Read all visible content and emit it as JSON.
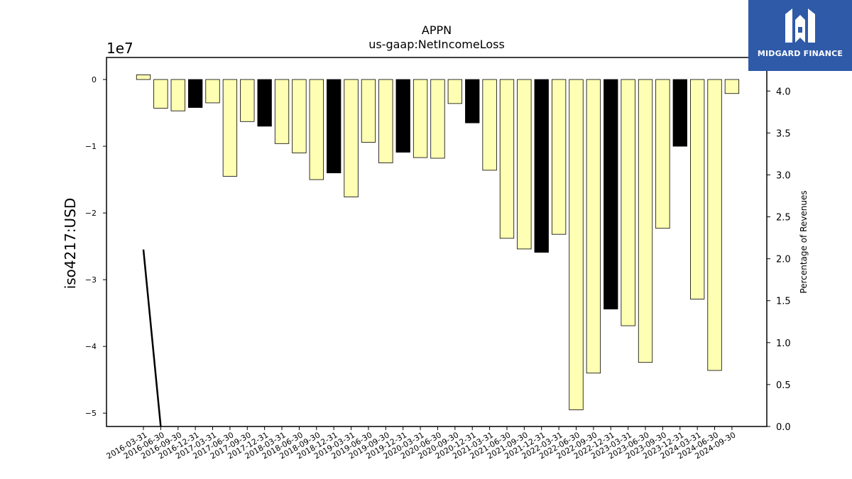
{
  "chart_data": {
    "type": "bar",
    "title": "APPN",
    "subtitle": "us-gaap:NetIncomeLoss",
    "ylabel": "iso4217:USD",
    "y_offset_label": "1e7",
    "y2label": "Percentage of Revenues",
    "ylim": [
      -52000000,
      3300000
    ],
    "y2lim": [
      0.0,
      4.4
    ],
    "yticks": [
      0,
      -10000000,
      -20000000,
      -30000000,
      -40000000,
      -50000000
    ],
    "yticklabels": [
      "0",
      "−1",
      "−2",
      "−3",
      "−4",
      "−5"
    ],
    "y2ticks": [
      0.0,
      0.5,
      1.0,
      1.5,
      2.0,
      2.5,
      3.0,
      3.5,
      4.0
    ],
    "y2ticklabels": [
      "0.0",
      "0.5",
      "1.0",
      "1.5",
      "2.0",
      "2.5",
      "3.0",
      "3.5",
      "4.0"
    ],
    "grid": false,
    "categories": [
      "2016-03-31",
      "2016-06-30",
      "2016-09-30",
      "2016-12-31",
      "2017-03-31",
      "2017-06-30",
      "2017-09-30",
      "2017-12-31",
      "2018-03-31",
      "2018-06-30",
      "2018-09-30",
      "2018-12-31",
      "2019-03-31",
      "2019-06-30",
      "2019-09-30",
      "2019-12-31",
      "2020-03-31",
      "2020-06-30",
      "2020-09-30",
      "2020-12-31",
      "2021-03-31",
      "2021-06-30",
      "2021-09-30",
      "2021-12-31",
      "2022-03-31",
      "2022-06-30",
      "2022-09-30",
      "2022-12-31",
      "2023-03-31",
      "2023-06-30",
      "2023-09-30",
      "2023-12-31",
      "2024-03-31",
      "2024-06-30",
      "2024-09-30"
    ],
    "values": [
      700000,
      -4300000,
      -4700000,
      -4200000,
      -3500000,
      -14500000,
      -6300000,
      -7000000,
      -9600000,
      -11000000,
      -15000000,
      -14000000,
      -17600000,
      -9400000,
      -12500000,
      -10900000,
      -11700000,
      -11800000,
      -3600000,
      -6500000,
      -13600000,
      -23800000,
      -25400000,
      -25900000,
      -23200000,
      -49500000,
      -44000000,
      -34400000,
      -36900000,
      -42400000,
      -22300000,
      -10000000,
      -32900000,
      -43600000,
      -2100000
    ],
    "bar_types": [
      "q",
      "q",
      "q",
      "y",
      "q",
      "q",
      "q",
      "y",
      "q",
      "q",
      "q",
      "y",
      "q",
      "q",
      "q",
      "y",
      "q",
      "q",
      "q",
      "y",
      "q",
      "q",
      "q",
      "y",
      "q",
      "q",
      "q",
      "y",
      "q",
      "q",
      "q",
      "y",
      "q",
      "q",
      "q"
    ],
    "colors": {
      "quarter_bar": "#ffffb3",
      "annual_bar": "#000000",
      "edge": "#000000",
      "line": "#000000"
    },
    "line_series": {
      "axis": "y2",
      "x": [
        "2016-03-31",
        "2016-06-30"
      ],
      "y": [
        2.11,
        0.0
      ]
    }
  },
  "logo": {
    "text": "MIDGARD FINANCE"
  }
}
